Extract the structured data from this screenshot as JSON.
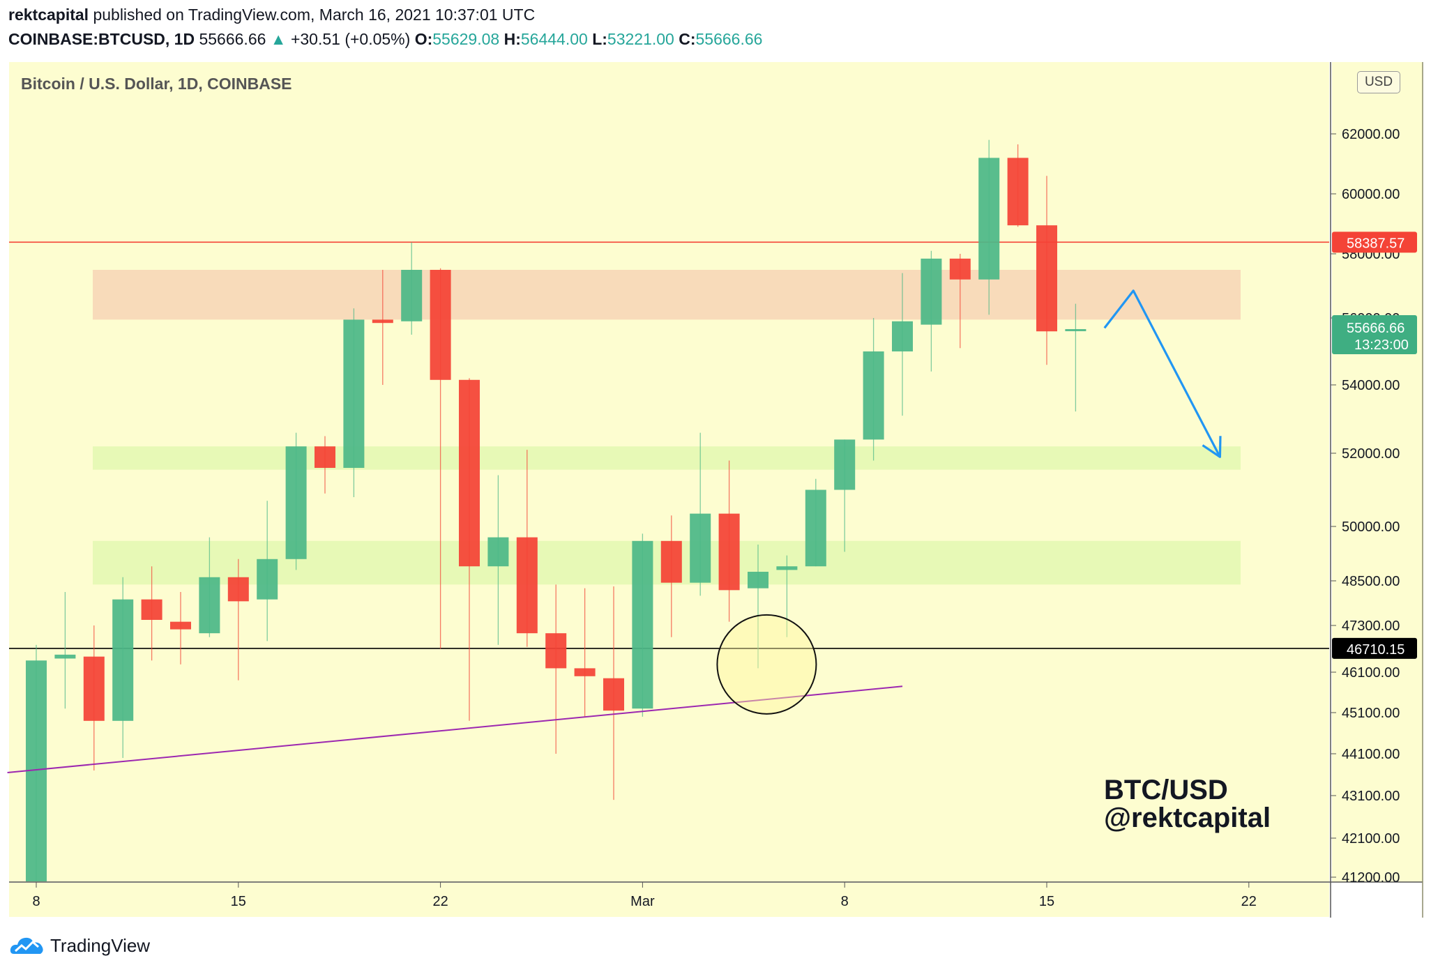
{
  "header": {
    "user": "rektcapital",
    "published": " published on TradingView.com, March 16, 2021 10:37:01 UTC",
    "symbol": "COINBASE:BTCUSD, 1D",
    "last": "55666.66",
    "change": "+30.51 (+0.05%)",
    "o_label": "O:",
    "o_value": "55629.08",
    "h_label": "H:",
    "h_value": "56444.00",
    "l_label": "L:",
    "l_value": "53221.00",
    "c_label": "C:",
    "c_value": "55666.66"
  },
  "footer": {
    "brand": "TradingView"
  },
  "colors": {
    "up": "#4cb888",
    "down": "#f44336",
    "background": "#fdfdd0",
    "resistance": "#f8d9b8",
    "support": "#e6f9b4",
    "arrow": "#2196f3",
    "trend": "#9c27b0"
  },
  "chart_data": {
    "type": "candlestick",
    "title": "Bitcoin / U.S. Dollar, 1D, COINBASE",
    "currency": "USD",
    "annotation": [
      "BTC/USD",
      "@rektcapital"
    ],
    "x_ticks": [
      {
        "idx": 0,
        "label": "8"
      },
      {
        "idx": 7,
        "label": "15"
      },
      {
        "idx": 14,
        "label": "22"
      },
      {
        "idx": 21,
        "label": "Mar"
      },
      {
        "idx": 28,
        "label": "8"
      },
      {
        "idx": 35,
        "label": "15"
      },
      {
        "idx": 42,
        "label": "22"
      }
    ],
    "y_ticks": [
      "62000.00",
      "60000.00",
      "58000.00",
      "56000.00",
      "54000.00",
      "52000.00",
      "50000.00",
      "48500.00",
      "47300.00",
      "46100.00",
      "45100.00",
      "44100.00",
      "43100.00",
      "42100.00",
      "41200.00"
    ],
    "price_lines": [
      {
        "name": "resistance",
        "value": "58387.57",
        "color": "#f44336"
      },
      {
        "name": "support",
        "value": "46710.15",
        "color": "#000000"
      }
    ],
    "last_price": {
      "value": "55666.66",
      "countdown": "13:23:00"
    },
    "zones": [
      {
        "kind": "resistance",
        "from": 55950,
        "to": 57500
      },
      {
        "kind": "support",
        "from": 51550,
        "to": 52200
      },
      {
        "kind": "support",
        "from": 48400,
        "to": 49600
      }
    ],
    "trendline": {
      "from": {
        "idx": -1,
        "price": 43650
      },
      "to": {
        "idx": 30,
        "price": 45750
      }
    },
    "projection": [
      {
        "idx": 37,
        "price": 55700
      },
      {
        "idx": 38,
        "price": 56850
      },
      {
        "idx": 41,
        "price": 51900
      }
    ],
    "highlight": {
      "idx": 25.3,
      "price": 46300
    },
    "candles": [
      {
        "o": 38500,
        "h": 46800,
        "l": 38500,
        "c": 46400
      },
      {
        "o": 46450,
        "h": 48200,
        "l": 45200,
        "c": 46550
      },
      {
        "o": 46500,
        "h": 47300,
        "l": 43700,
        "c": 44900
      },
      {
        "o": 44900,
        "h": 48600,
        "l": 44000,
        "c": 48000
      },
      {
        "o": 48000,
        "h": 48900,
        "l": 46400,
        "c": 47450
      },
      {
        "o": 47400,
        "h": 48200,
        "l": 46300,
        "c": 47200
      },
      {
        "o": 47100,
        "h": 49700,
        "l": 47000,
        "c": 48600
      },
      {
        "o": 48600,
        "h": 49100,
        "l": 45900,
        "c": 47950
      },
      {
        "o": 48000,
        "h": 50700,
        "l": 46900,
        "c": 49100
      },
      {
        "o": 49100,
        "h": 52600,
        "l": 48800,
        "c": 52200
      },
      {
        "o": 52200,
        "h": 52500,
        "l": 50900,
        "c": 51600
      },
      {
        "o": 51600,
        "h": 56300,
        "l": 50800,
        "c": 55950
      },
      {
        "o": 55950,
        "h": 57500,
        "l": 54000,
        "c": 55850
      },
      {
        "o": 55900,
        "h": 58387,
        "l": 55500,
        "c": 57500
      },
      {
        "o": 57500,
        "h": 57550,
        "l": 46700,
        "c": 54150
      },
      {
        "o": 54150,
        "h": 54200,
        "l": 44900,
        "c": 48900
      },
      {
        "o": 48900,
        "h": 51400,
        "l": 46800,
        "c": 49700
      },
      {
        "o": 49700,
        "h": 52100,
        "l": 46750,
        "c": 47100
      },
      {
        "o": 47100,
        "h": 48400,
        "l": 44100,
        "c": 46200
      },
      {
        "o": 46200,
        "h": 48300,
        "l": 45000,
        "c": 46000
      },
      {
        "o": 45950,
        "h": 48350,
        "l": 43000,
        "c": 45150
      },
      {
        "o": 45200,
        "h": 49800,
        "l": 45000,
        "c": 49600
      },
      {
        "o": 49600,
        "h": 50300,
        "l": 47000,
        "c": 48450
      },
      {
        "o": 48450,
        "h": 52600,
        "l": 48100,
        "c": 50350
      },
      {
        "o": 50350,
        "h": 51800,
        "l": 47400,
        "c": 48250
      },
      {
        "o": 48300,
        "h": 49500,
        "l": 46200,
        "c": 48750
      },
      {
        "o": 48800,
        "h": 49200,
        "l": 47000,
        "c": 48900
      },
      {
        "o": 48900,
        "h": 51300,
        "l": 48900,
        "c": 51000
      },
      {
        "o": 51000,
        "h": 52400,
        "l": 49300,
        "c": 52400
      },
      {
        "o": 52400,
        "h": 56000,
        "l": 51800,
        "c": 55000
      },
      {
        "o": 55000,
        "h": 57400,
        "l": 53100,
        "c": 55900
      },
      {
        "o": 55800,
        "h": 58100,
        "l": 54400,
        "c": 57850
      },
      {
        "o": 57850,
        "h": 58000,
        "l": 55100,
        "c": 57200
      },
      {
        "o": 57200,
        "h": 61800,
        "l": 56100,
        "c": 61200
      },
      {
        "o": 61200,
        "h": 61650,
        "l": 58900,
        "c": 58950
      },
      {
        "o": 58950,
        "h": 60600,
        "l": 54600,
        "c": 55600
      },
      {
        "o": 55629,
        "h": 56444,
        "l": 53221,
        "c": 55667
      }
    ]
  }
}
